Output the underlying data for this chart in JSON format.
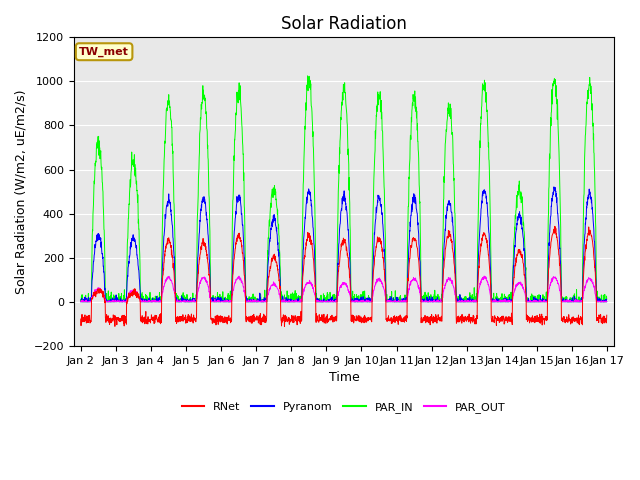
{
  "title": "Solar Radiation",
  "xlabel": "Time",
  "ylabel": "Solar Radiation (W/m2, uE/m2/s)",
  "ylim": [
    -200,
    1200
  ],
  "yticks": [
    -200,
    0,
    200,
    400,
    600,
    800,
    1000,
    1200
  ],
  "xtick_labels": [
    "Jan 2",
    "Jan 3",
    "Jan 4",
    "Jan 5",
    "Jan 6",
    "Jan 7",
    "Jan 8",
    "Jan 9",
    "Jan 10",
    "Jan 11",
    "Jan 12",
    "Jan 13",
    "Jan 14",
    "Jan 15",
    "Jan 16",
    "Jan 17"
  ],
  "legend_labels": [
    "RNet",
    "Pyranom",
    "PAR_IN",
    "PAR_OUT"
  ],
  "legend_colors": [
    "red",
    "blue",
    "lime",
    "magenta"
  ],
  "site_label": "TW_met",
  "site_label_bgcolor": "#ffffcc",
  "site_label_edgecolor": "#b8960c",
  "plot_bgcolor": "#e8e8e8",
  "grid_color": "white",
  "title_fontsize": 12,
  "axis_fontsize": 9,
  "tick_fontsize": 8,
  "colors": {
    "RNet": "red",
    "Pyranom": "blue",
    "PAR_IN": "#00ff00",
    "PAR_OUT": "magenta"
  },
  "num_days": 15,
  "pts_per_day": 144,
  "par_in_peaks": [
    720,
    630,
    910,
    950,
    960,
    510,
    1010,
    960,
    930,
    930,
    880,
    980,
    510,
    1000,
    990
  ],
  "pyranom_peaks": [
    300,
    290,
    460,
    470,
    475,
    380,
    500,
    475,
    470,
    470,
    450,
    510,
    390,
    510,
    490
  ],
  "par_out_peaks": [
    60,
    50,
    110,
    110,
    110,
    80,
    90,
    85,
    100,
    105,
    105,
    110,
    85,
    110,
    105
  ],
  "rnet_peaks": [
    50,
    40,
    280,
    270,
    300,
    200,
    300,
    280,
    290,
    290,
    310,
    310,
    230,
    330,
    320
  ],
  "rnet_night": -80,
  "day_start": 0.3,
  "day_end": 0.7,
  "linewidth": 0.7
}
